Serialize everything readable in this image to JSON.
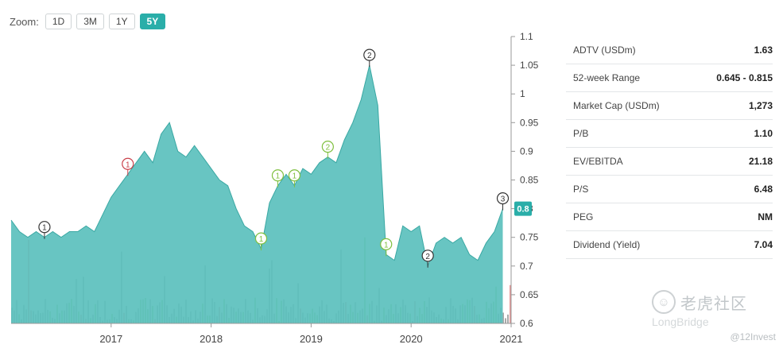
{
  "zoom": {
    "label": "Zoom:",
    "buttons": [
      {
        "label": "1D",
        "active": false
      },
      {
        "label": "3M",
        "active": false
      },
      {
        "label": "1Y",
        "active": false
      },
      {
        "label": "5Y",
        "active": true
      }
    ]
  },
  "stats": [
    {
      "label": "ADTV (USDm)",
      "value": "1.63"
    },
    {
      "label": "52-week Range",
      "value": "0.645 - 0.815"
    },
    {
      "label": "Market Cap (USDm)",
      "value": "1,273"
    },
    {
      "label": "P/B",
      "value": "1.10"
    },
    {
      "label": "EV/EBITDA",
      "value": "21.18"
    },
    {
      "label": "P/S",
      "value": "6.48"
    },
    {
      "label": "PEG",
      "value": "NM"
    },
    {
      "label": "Dividend (Yield)",
      "value": "7.04"
    }
  ],
  "watermark": {
    "cn": "老虎社区",
    "en": "LongBridge",
    "tag": "@12Invest"
  },
  "colors": {
    "area": "#5cc1bd",
    "area_line": "#3aa8a3",
    "accent": "#2aaea9",
    "volume_gray": "#9a9a9a",
    "volume_green": "#8dc86a",
    "volume_red": "#e08a8a",
    "marker_green": "#7fbf3f",
    "marker_red": "#c9404a",
    "marker_dark": "#333333"
  },
  "chart_data": {
    "type": "area",
    "title": "",
    "xlabel": "",
    "ylabel": "",
    "x_ticks": [
      "2017",
      "2018",
      "2019",
      "2020",
      "2021"
    ],
    "y_ticks": [
      0.6,
      0.65,
      0.7,
      0.75,
      0.8,
      0.85,
      0.9,
      0.95,
      1,
      1.05,
      1.1
    ],
    "ylim": [
      0.6,
      1.1
    ],
    "xlim": [
      "2016-01",
      "2021-01"
    ],
    "last_price_label": "0.8",
    "series": [
      {
        "values": [
          [
            "2016-01",
            0.78
          ],
          [
            "2016-02",
            0.76
          ],
          [
            "2016-03",
            0.75
          ],
          [
            "2016-04",
            0.76
          ],
          [
            "2016-05",
            0.75
          ],
          [
            "2016-06",
            0.76
          ],
          [
            "2016-07",
            0.75
          ],
          [
            "2016-08",
            0.76
          ],
          [
            "2016-09",
            0.76
          ],
          [
            "2016-10",
            0.77
          ],
          [
            "2016-11",
            0.76
          ],
          [
            "2016-12",
            0.79
          ],
          [
            "2017-01",
            0.82
          ],
          [
            "2017-02",
            0.84
          ],
          [
            "2017-03",
            0.86
          ],
          [
            "2017-04",
            0.88
          ],
          [
            "2017-05",
            0.9
          ],
          [
            "2017-06",
            0.88
          ],
          [
            "2017-07",
            0.93
          ],
          [
            "2017-08",
            0.95
          ],
          [
            "2017-09",
            0.9
          ],
          [
            "2017-10",
            0.89
          ],
          [
            "2017-11",
            0.91
          ],
          [
            "2017-12",
            0.89
          ],
          [
            "2018-01",
            0.87
          ],
          [
            "2018-02",
            0.85
          ],
          [
            "2018-03",
            0.84
          ],
          [
            "2018-04",
            0.8
          ],
          [
            "2018-05",
            0.77
          ],
          [
            "2018-06",
            0.76
          ],
          [
            "2018-07",
            0.73
          ],
          [
            "2018-08",
            0.81
          ],
          [
            "2018-09",
            0.84
          ],
          [
            "2018-10",
            0.86
          ],
          [
            "2018-11",
            0.84
          ],
          [
            "2018-12",
            0.87
          ],
          [
            "2019-01",
            0.86
          ],
          [
            "2019-02",
            0.88
          ],
          [
            "2019-03",
            0.89
          ],
          [
            "2019-04",
            0.88
          ],
          [
            "2019-05",
            0.92
          ],
          [
            "2019-06",
            0.95
          ],
          [
            "2019-07",
            0.99
          ],
          [
            "2019-08",
            1.05
          ],
          [
            "2019-09",
            0.98
          ],
          [
            "2019-10",
            0.72
          ],
          [
            "2019-11",
            0.71
          ],
          [
            "2019-12",
            0.77
          ],
          [
            "2020-01",
            0.76
          ],
          [
            "2020-02",
            0.77
          ],
          [
            "2020-03",
            0.7
          ],
          [
            "2020-04",
            0.74
          ],
          [
            "2020-05",
            0.75
          ],
          [
            "2020-06",
            0.74
          ],
          [
            "2020-07",
            0.75
          ],
          [
            "2020-08",
            0.72
          ],
          [
            "2020-09",
            0.71
          ],
          [
            "2020-10",
            0.74
          ],
          [
            "2020-11",
            0.76
          ],
          [
            "2020-12",
            0.8
          ]
        ]
      }
    ],
    "markers": [
      {
        "label": "1",
        "date": "2016-05",
        "style": "dark"
      },
      {
        "label": "1",
        "date": "2017-03",
        "style": "red"
      },
      {
        "label": "1",
        "date": "2018-07",
        "style": "green"
      },
      {
        "label": "1",
        "date": "2018-09",
        "style": "green"
      },
      {
        "label": "1",
        "date": "2018-11",
        "style": "green"
      },
      {
        "label": "2",
        "date": "2019-03",
        "style": "green"
      },
      {
        "label": "2",
        "date": "2019-08",
        "style": "dark"
      },
      {
        "label": "1",
        "date": "2019-10",
        "style": "green"
      },
      {
        "label": "2",
        "date": "2020-03",
        "style": "dark"
      },
      {
        "label": "3",
        "date": "2020-12",
        "style": "dark"
      }
    ]
  }
}
